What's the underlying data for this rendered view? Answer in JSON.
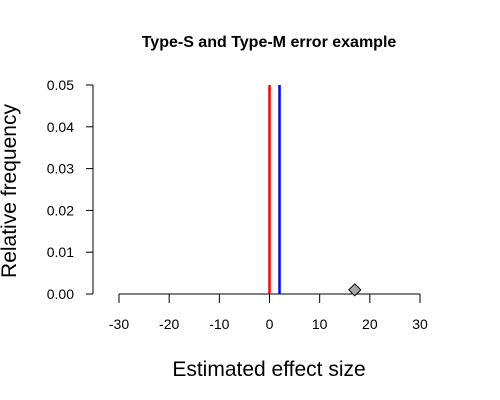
{
  "chart_data": {
    "type": "scatter",
    "title": "Type-S and Type-M error example",
    "xlabel": "Estimated effect size",
    "ylabel": "Relative frequency",
    "xlim": [
      -30,
      30
    ],
    "ylim": [
      0,
      0.05
    ],
    "x_ticks": [
      -30,
      -20,
      -10,
      0,
      10,
      20,
      30
    ],
    "x_tick_labels": [
      "-30",
      "-20",
      "-10",
      "0",
      "10",
      "20",
      "30"
    ],
    "y_ticks": [
      0.0,
      0.01,
      0.02,
      0.03,
      0.04,
      0.05
    ],
    "y_tick_labels": [
      "0.00",
      "0.01",
      "0.02",
      "0.03",
      "0.04",
      "0.05"
    ],
    "grid": false,
    "vertical_lines": [
      {
        "x": 0,
        "color": "#ff0000"
      },
      {
        "x": 2,
        "color": "#0000ff"
      }
    ],
    "series": [
      {
        "marker": "diamond",
        "fill": "#a6a6a6",
        "stroke": "#000000",
        "x": [
          17
        ],
        "y": [
          0.001
        ]
      }
    ]
  }
}
